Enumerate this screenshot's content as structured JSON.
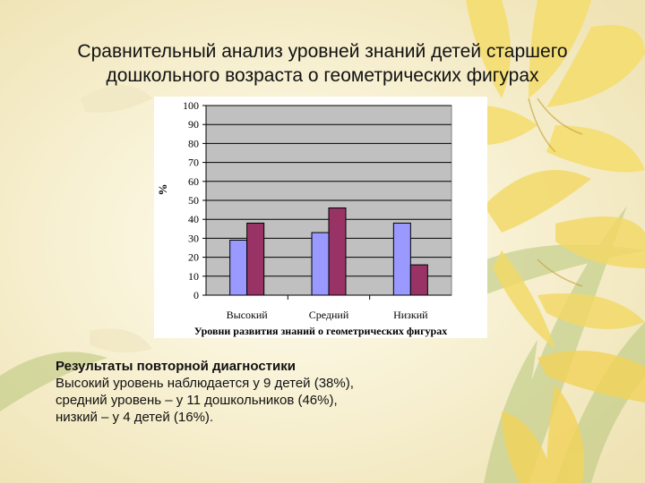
{
  "slide": {
    "title_line1": "Сравнительный анализ уровней знаний детей старшего",
    "title_line2": "дошкольного возраста о геометрических фигурах"
  },
  "results": {
    "heading": "Результаты повторной диагностики",
    "line1": "Высокий уровень наблюдается у 9 детей (38%),",
    "line2": "средний уровень – у 11 дошкольников (46%),",
    "line3": "низкий – у 4 детей (16%)."
  },
  "colors": {
    "background": "#f7f1d6",
    "plot_area": "#c0c0c0",
    "series1": "#9999ff",
    "series2": "#993366",
    "flower": "#f3d964"
  },
  "chart_data": {
    "type": "bar",
    "categories": [
      "Высокий",
      "Средний",
      "Низкий"
    ],
    "series": [
      {
        "values": [
          29,
          33,
          38
        ]
      },
      {
        "values": [
          38,
          46,
          16
        ]
      }
    ],
    "ylabel": "%",
    "xlabel": "Уровни развития знаний о геометрических фигурах",
    "ylim": [
      0,
      100
    ],
    "yticks": [
      0,
      10,
      20,
      30,
      40,
      50,
      60,
      70,
      80,
      90,
      100
    ],
    "grid": true,
    "legend": "none"
  }
}
